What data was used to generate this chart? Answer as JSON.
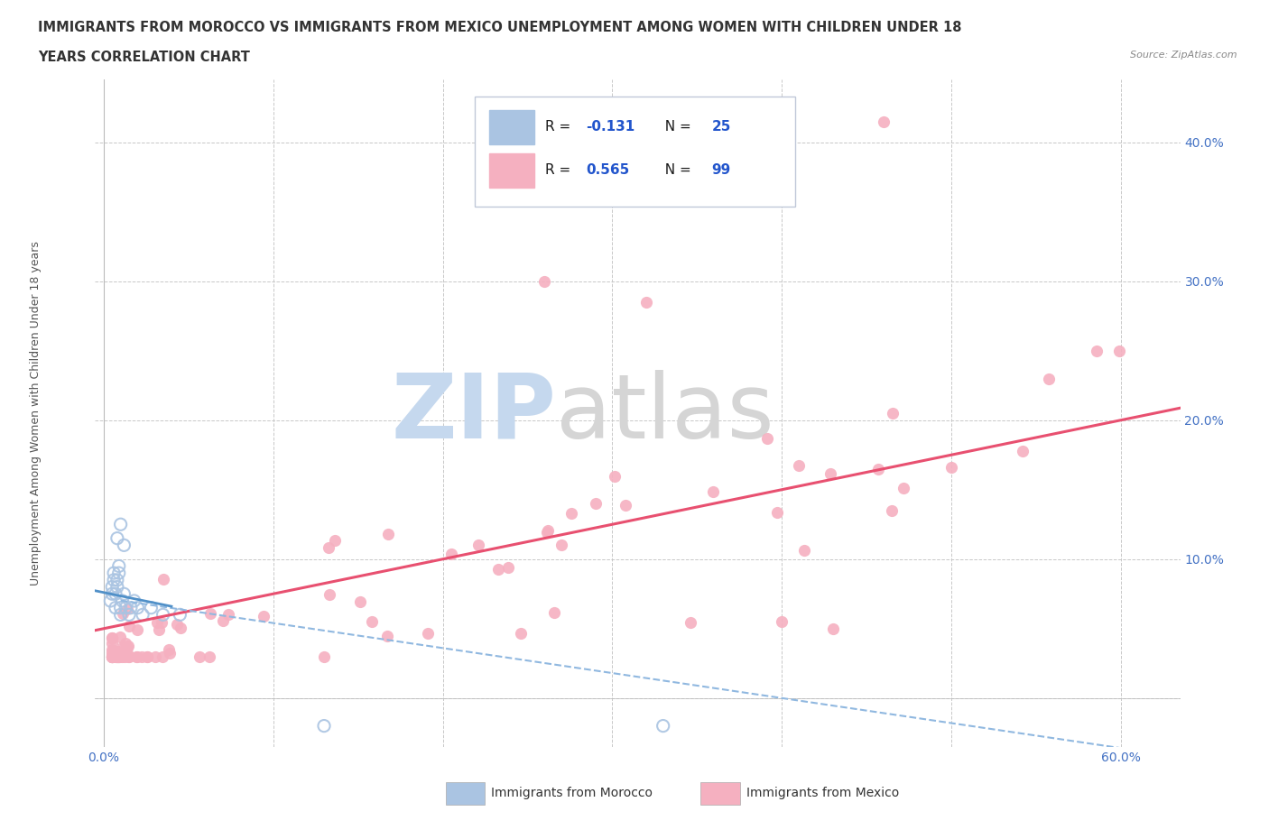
{
  "title_line1": "IMMIGRANTS FROM MOROCCO VS IMMIGRANTS FROM MEXICO UNEMPLOYMENT AMONG WOMEN WITH CHILDREN UNDER 18",
  "title_line2": "YEARS CORRELATION CHART",
  "source_text": "Source: ZipAtlas.com",
  "ylabel": "Unemployment Among Women with Children Under 18 years",
  "xlim": [
    -0.005,
    0.635
  ],
  "ylim": [
    -0.035,
    0.445
  ],
  "morocco_color": "#aac4e2",
  "mexico_color": "#f5b0c0",
  "morocco_line_color": "#5090c8",
  "mexico_line_color": "#e85070",
  "morocco_dash_color": "#90b8e0",
  "background_color": "#ffffff",
  "plot_bg_color": "#ffffff",
  "grid_color": "#c8c8c8",
  "title_color": "#333333",
  "axis_label_color": "#555555",
  "tick_color": "#4472c4",
  "watermark_zip_color": "#c5d8ee",
  "watermark_atlas_color": "#d5d5d5",
  "legend_text_color": "#1a1a1a",
  "legend_value_color": "#2255cc"
}
